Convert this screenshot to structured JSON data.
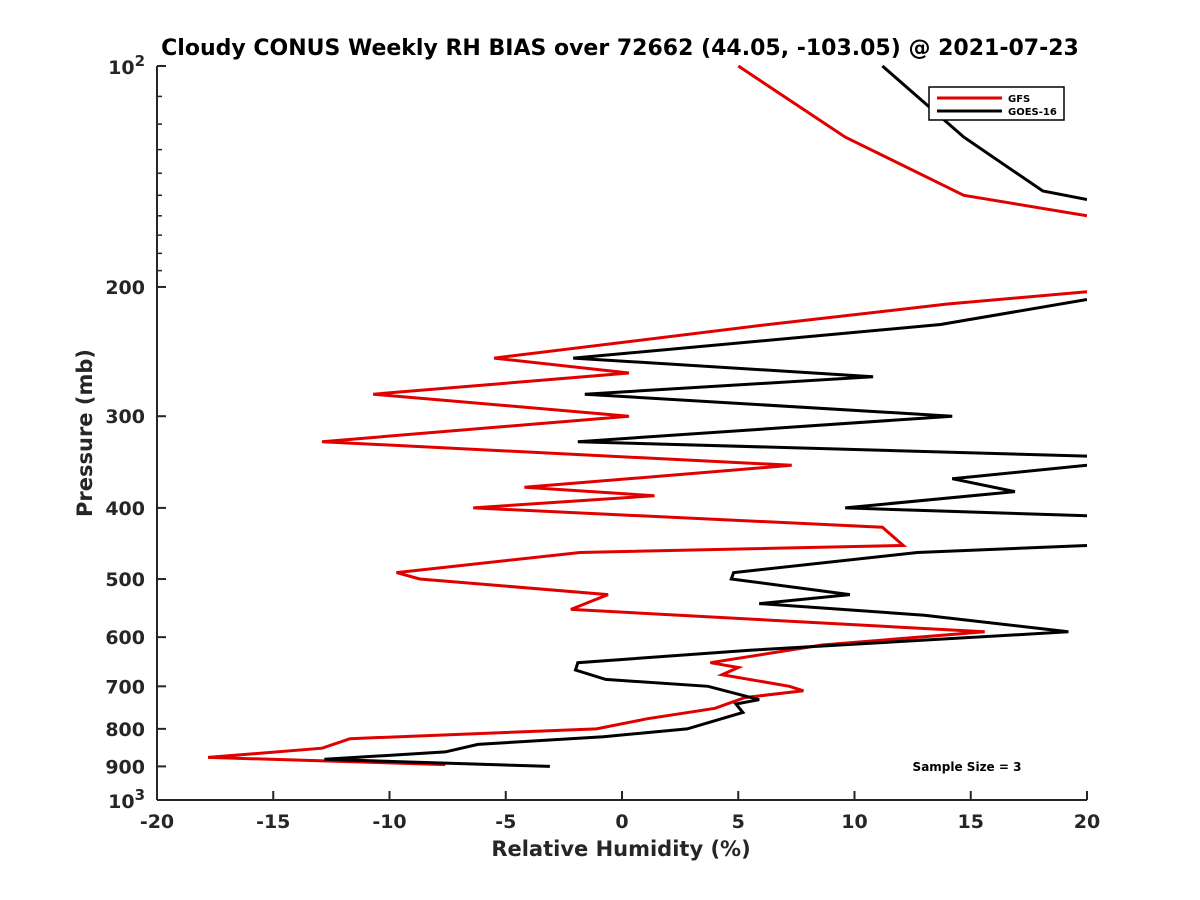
{
  "chart_data": {
    "type": "line",
    "title": "Cloudy CONUS Weekly RH BIAS over 72662 (44.05, -103.05) @ 2021-07-23",
    "xlabel": "Relative Humidity (%)",
    "ylabel": "Pressure (mb)",
    "xlim": [
      -20,
      20
    ],
    "ylim": [
      100,
      1000
    ],
    "y_scale": "log",
    "y_reversed": true,
    "grid": false,
    "legend_position": "top-right",
    "x_ticks": [
      "-20",
      "-15",
      "-10",
      "-5",
      "0",
      "5",
      "10",
      "15",
      "20"
    ],
    "y_ticks": [
      {
        "value": 100,
        "base": "10",
        "exp": "2"
      },
      {
        "value": 200,
        "label": "200"
      },
      {
        "value": 300,
        "label": "300"
      },
      {
        "value": 400,
        "label": "400"
      },
      {
        "value": 500,
        "label": "500"
      },
      {
        "value": 600,
        "label": "600"
      },
      {
        "value": 700,
        "label": "700"
      },
      {
        "value": 800,
        "label": "800"
      },
      {
        "value": 900,
        "label": "900"
      },
      {
        "value": 1000,
        "base": "10",
        "exp": "3"
      }
    ],
    "series": [
      {
        "name": "GFS",
        "color": "#e00000",
        "points": [
          [
            5.0,
            100
          ],
          [
            9.6,
            125
          ],
          [
            14.7,
            150
          ],
          [
            20.0,
            160
          ],
          null,
          [
            20.0,
            203
          ],
          [
            14.0,
            211
          ],
          [
            6.3,
            225
          ],
          [
            -5.5,
            250
          ],
          [
            0.3,
            262
          ],
          [
            -10.7,
            280
          ],
          [
            0.3,
            300
          ],
          [
            -12.9,
            325
          ],
          [
            7.3,
            350
          ],
          [
            -4.2,
            375
          ],
          [
            1.4,
            385
          ],
          [
            -6.4,
            400
          ],
          [
            11.2,
            425
          ],
          [
            12.1,
            450
          ],
          [
            -1.8,
            460
          ],
          [
            -9.7,
            490
          ],
          [
            -8.7,
            500
          ],
          [
            -0.6,
            525
          ],
          [
            -2.2,
            550
          ],
          [
            15.6,
            590
          ],
          [
            8.6,
            615
          ],
          [
            3.8,
            650
          ],
          [
            5.0,
            660
          ],
          [
            4.3,
            675
          ],
          [
            7.2,
            700
          ],
          [
            7.8,
            710
          ],
          [
            5.3,
            725
          ],
          [
            4.0,
            750
          ],
          [
            1.1,
            775
          ],
          [
            -1.1,
            800
          ],
          [
            -11.7,
            825
          ],
          [
            -12.9,
            850
          ],
          [
            -17.8,
            875
          ],
          [
            -7.6,
            895
          ]
        ]
      },
      {
        "name": "GOES-16",
        "color": "#000000",
        "points": [
          [
            11.2,
            100
          ],
          [
            14.7,
            125
          ],
          [
            18.1,
            148
          ],
          [
            20.0,
            152
          ],
          null,
          [
            20.0,
            208
          ],
          [
            13.7,
            225
          ],
          [
            -2.1,
            250
          ],
          [
            10.8,
            265
          ],
          [
            -1.6,
            280
          ],
          [
            14.2,
            300
          ],
          [
            -1.9,
            325
          ],
          [
            20.0,
            340
          ],
          null,
          [
            20.0,
            350
          ],
          [
            14.2,
            365
          ],
          [
            16.9,
            380
          ],
          [
            9.6,
            400
          ],
          [
            20.0,
            410
          ],
          null,
          [
            20.0,
            450
          ],
          [
            12.7,
            460
          ],
          [
            4.8,
            490
          ],
          [
            4.7,
            500
          ],
          [
            9.8,
            525
          ],
          [
            5.9,
            540
          ],
          [
            13.0,
            560
          ],
          [
            19.2,
            590
          ],
          [
            5.5,
            625
          ],
          [
            -1.9,
            650
          ],
          [
            -2.0,
            665
          ],
          [
            -0.7,
            685
          ],
          [
            3.7,
            700
          ],
          [
            5.9,
            730
          ],
          [
            4.9,
            740
          ],
          [
            5.2,
            760
          ],
          [
            2.8,
            800
          ],
          [
            -0.8,
            820
          ],
          [
            -6.2,
            840
          ],
          [
            -7.6,
            860
          ],
          [
            -12.8,
            880
          ],
          [
            -3.1,
            900
          ]
        ]
      }
    ],
    "annotation": "Sample Size = 3"
  }
}
